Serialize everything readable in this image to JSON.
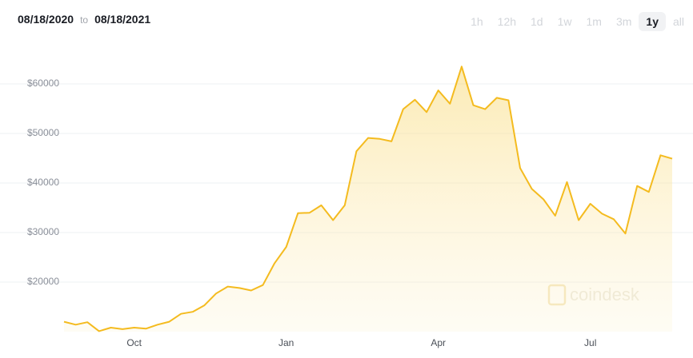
{
  "range": {
    "start": "08/18/2020",
    "to": "to",
    "end": "08/18/2021"
  },
  "buttons": [
    "1h",
    "12h",
    "1d",
    "1w",
    "1m",
    "3m",
    "1y",
    "all"
  ],
  "selected": "1y",
  "watermark": "coindesk",
  "chart_data": {
    "type": "area",
    "categories": [
      null,
      null,
      null,
      null,
      null,
      null,
      "Oct",
      null,
      null,
      null,
      null,
      null,
      null,
      null,
      null,
      null,
      null,
      null,
      null,
      "Jan",
      null,
      null,
      null,
      null,
      null,
      null,
      null,
      null,
      null,
      null,
      null,
      null,
      "Apr",
      null,
      null,
      null,
      null,
      null,
      null,
      null,
      null,
      null,
      null,
      null,
      null,
      "Jul",
      null,
      null,
      null,
      null,
      null,
      null,
      null
    ],
    "values": [
      12000,
      11400,
      11900,
      10100,
      10800,
      10500,
      10800,
      10600,
      11400,
      12000,
      13600,
      14000,
      15300,
      17700,
      19100,
      18800,
      18300,
      19400,
      23800,
      27100,
      33900,
      34000,
      35500,
      32500,
      35500,
      46400,
      49100,
      48900,
      48400,
      54900,
      56800,
      54300,
      58700,
      56000,
      63500,
      55700,
      54900,
      57200,
      56700,
      43000,
      38800,
      36700,
      33400,
      40200,
      32500,
      35800,
      33800,
      32700,
      29800,
      39400,
      38200,
      45600,
      44900
    ],
    "color": "#f4bb1f",
    "ylim": [
      10000,
      67000
    ],
    "yticks": [
      {
        "value": 20000,
        "label": "$20000"
      },
      {
        "value": 30000,
        "label": "$30000"
      },
      {
        "value": 40000,
        "label": "$40000"
      },
      {
        "value": 50000,
        "label": "$50000"
      },
      {
        "value": 60000,
        "label": "$60000"
      }
    ],
    "grid": true
  }
}
